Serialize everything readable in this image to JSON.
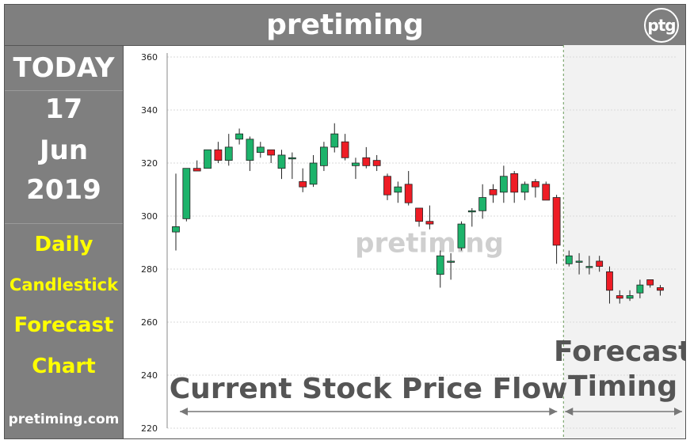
{
  "header": {
    "title": "pretiming",
    "logo_text": "ptg"
  },
  "sidebar": {
    "today": "TODAY",
    "day": "17",
    "month": "Jun",
    "year": "2019",
    "desc1": "Daily",
    "desc2": "Candlestick",
    "desc3": "Forecast",
    "desc4": "Chart",
    "site": "pretiming.com"
  },
  "colors": {
    "up": "#1db36b",
    "down": "#ee1c25",
    "header_bg": "#7f7f7f",
    "forecast_bg": "#f2f2f2",
    "accent_text": "#ffff00"
  },
  "chart_data": {
    "type": "candlestick",
    "title": "",
    "xlabel": "",
    "ylabel": "",
    "ylim": [
      220,
      360
    ],
    "yticks": [
      220,
      240,
      260,
      280,
      300,
      320,
      340,
      360
    ],
    "grid": true,
    "watermark": "pretiming",
    "regions": {
      "history_label": "Current Stock Price Flow",
      "forecast_label_line1": "Forecast",
      "forecast_label_line2": "Timing"
    },
    "history": [
      {
        "o": 294,
        "h": 316,
        "l": 287,
        "c": 296
      },
      {
        "o": 299,
        "h": 318,
        "l": 298,
        "c": 318
      },
      {
        "o": 318,
        "h": 321,
        "l": 317,
        "c": 317
      },
      {
        "o": 318,
        "h": 325,
        "l": 318,
        "c": 325
      },
      {
        "o": 325,
        "h": 328,
        "l": 320,
        "c": 321
      },
      {
        "o": 321,
        "h": 331,
        "l": 319,
        "c": 326
      },
      {
        "o": 329,
        "h": 333,
        "l": 327,
        "c": 331
      },
      {
        "o": 321,
        "h": 330,
        "l": 317,
        "c": 329
      },
      {
        "o": 324,
        "h": 328,
        "l": 322,
        "c": 326
      },
      {
        "o": 325,
        "h": 325,
        "l": 320,
        "c": 323
      },
      {
        "o": 318,
        "h": 325,
        "l": 314,
        "c": 323
      },
      {
        "o": 322,
        "h": 324,
        "l": 314,
        "c": 322
      },
      {
        "o": 313,
        "h": 318,
        "l": 309,
        "c": 311
      },
      {
        "o": 312,
        "h": 323,
        "l": 311,
        "c": 320
      },
      {
        "o": 319,
        "h": 328,
        "l": 317,
        "c": 326
      },
      {
        "o": 326,
        "h": 335,
        "l": 324,
        "c": 331
      },
      {
        "o": 328,
        "h": 331,
        "l": 321,
        "c": 322
      },
      {
        "o": 319,
        "h": 322,
        "l": 314,
        "c": 320
      },
      {
        "o": 322,
        "h": 326,
        "l": 318,
        "c": 319
      },
      {
        "o": 321,
        "h": 323,
        "l": 317,
        "c": 319
      },
      {
        "o": 315,
        "h": 316,
        "l": 306,
        "c": 308
      },
      {
        "o": 309,
        "h": 313,
        "l": 305,
        "c": 311
      },
      {
        "o": 312,
        "h": 317,
        "l": 304,
        "c": 305
      },
      {
        "o": 303,
        "h": 303,
        "l": 296,
        "c": 298
      },
      {
        "o": 298,
        "h": 304,
        "l": 295,
        "c": 297
      },
      {
        "o": 278,
        "h": 287,
        "l": 273,
        "c": 285
      },
      {
        "o": 283,
        "h": 286,
        "l": 276,
        "c": 283
      },
      {
        "o": 288,
        "h": 298,
        "l": 287,
        "c": 297
      },
      {
        "o": 302,
        "h": 303,
        "l": 296,
        "c": 302
      },
      {
        "o": 302,
        "h": 312,
        "l": 299,
        "c": 307
      },
      {
        "o": 310,
        "h": 312,
        "l": 305,
        "c": 308
      },
      {
        "o": 309,
        "h": 319,
        "l": 305,
        "c": 315
      },
      {
        "o": 316,
        "h": 317,
        "l": 305,
        "c": 309
      },
      {
        "o": 309,
        "h": 313,
        "l": 306,
        "c": 312
      },
      {
        "o": 313,
        "h": 314,
        "l": 307,
        "c": 311
      },
      {
        "o": 312,
        "h": 313,
        "l": 306,
        "c": 306
      },
      {
        "o": 307,
        "h": 308,
        "l": 282,
        "c": 289
      }
    ],
    "forecast": [
      {
        "o": 282,
        "h": 287,
        "l": 281,
        "c": 285
      },
      {
        "o": 283,
        "h": 286,
        "l": 278,
        "c": 283
      },
      {
        "o": 281,
        "h": 285,
        "l": 278,
        "c": 281
      },
      {
        "o": 283,
        "h": 285,
        "l": 279,
        "c": 281
      },
      {
        "o": 279,
        "h": 281,
        "l": 267,
        "c": 272
      },
      {
        "o": 270,
        "h": 272,
        "l": 267,
        "c": 269
      },
      {
        "o": 269,
        "h": 272,
        "l": 268,
        "c": 270
      },
      {
        "o": 271,
        "h": 276,
        "l": 269,
        "c": 274
      },
      {
        "o": 276,
        "h": 276,
        "l": 273,
        "c": 274
      },
      {
        "o": 273,
        "h": 274,
        "l": 270,
        "c": 272
      }
    ]
  }
}
